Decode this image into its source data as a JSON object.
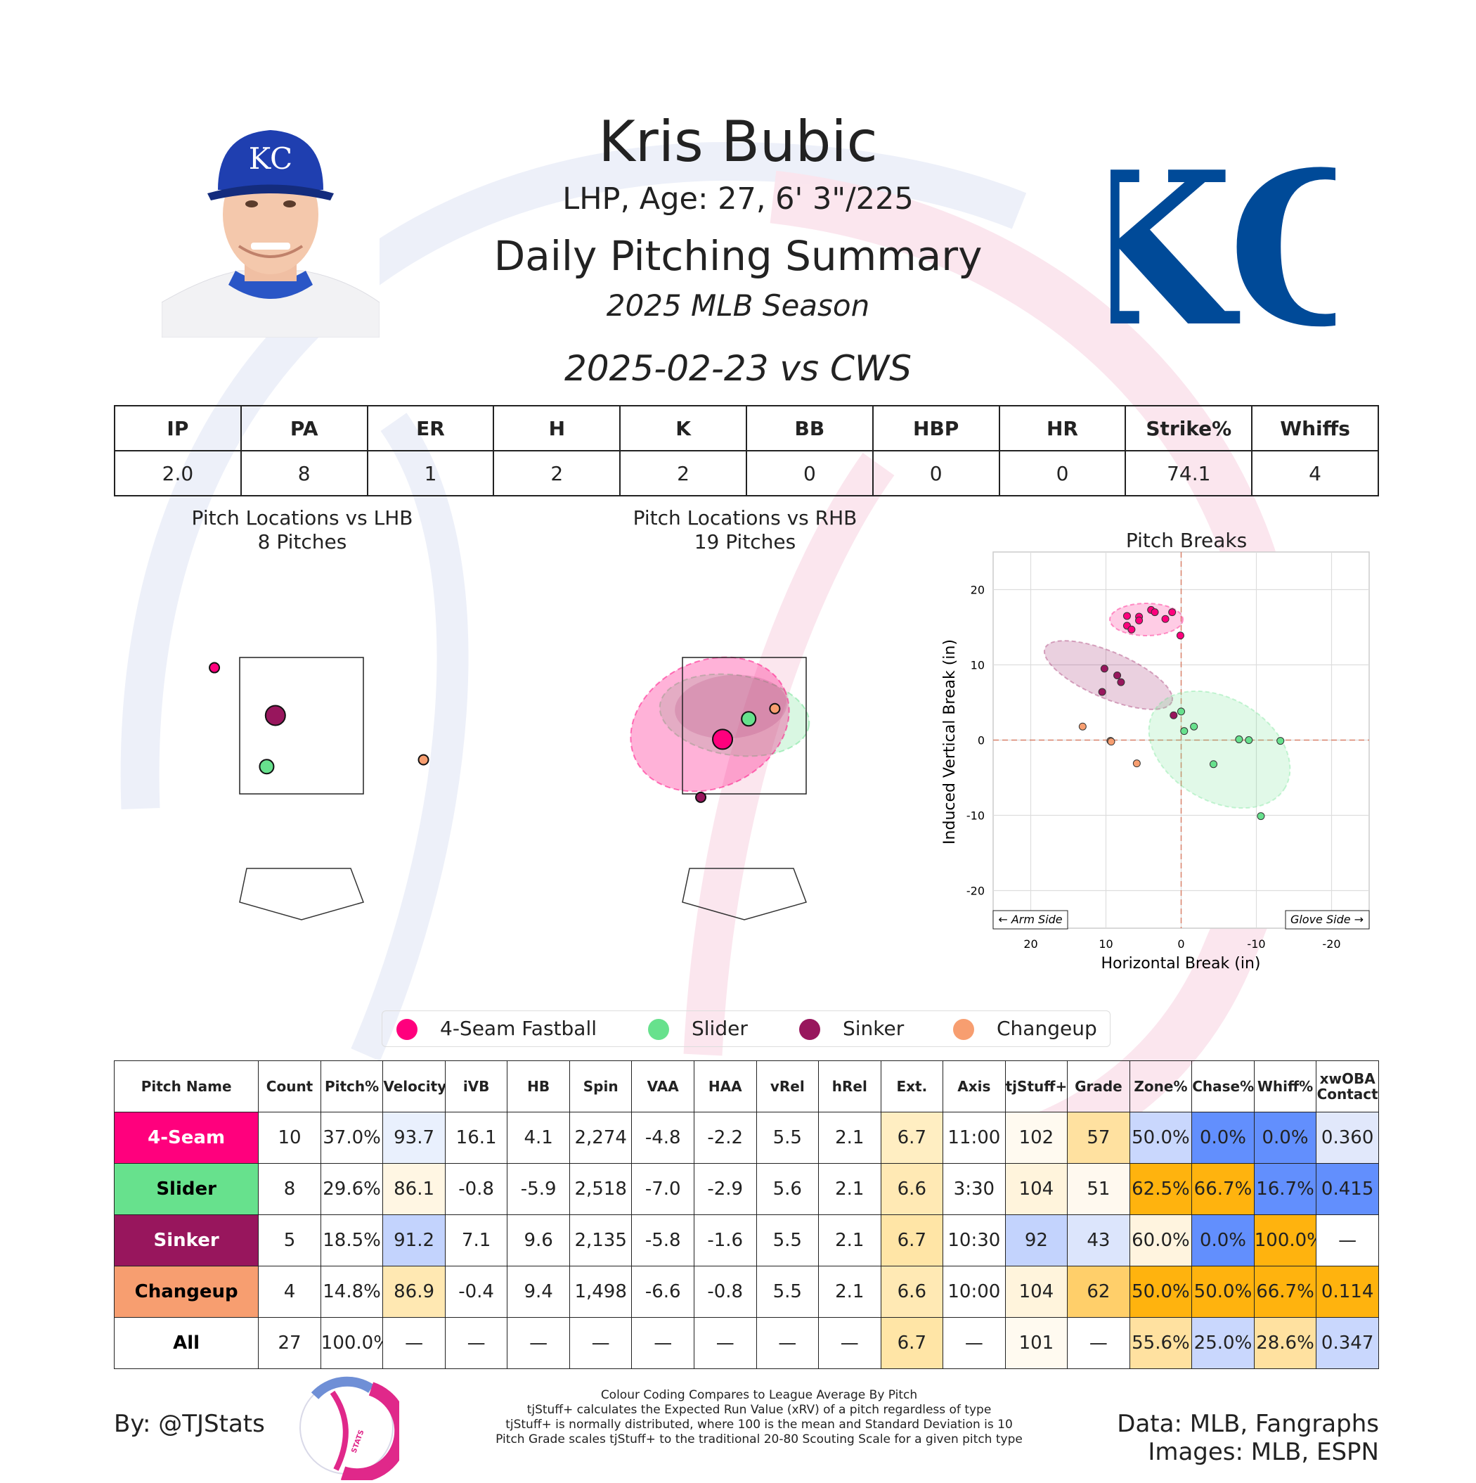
{
  "header": {
    "name": "Kris Bubic",
    "bio": "LHP, Age: 27, 6' 3\"/225",
    "report": "Daily Pitching Summary",
    "season": "2025 MLB Season",
    "game": "2025-02-23 vs CWS",
    "team_logo_text": "KC",
    "cap_logo_text": "KC"
  },
  "summary": {
    "headers": [
      "IP",
      "PA",
      "ER",
      "H",
      "K",
      "BB",
      "HBP",
      "HR",
      "Strike%",
      "Whiffs"
    ],
    "values": [
      "2.0",
      "8",
      "1",
      "2",
      "2",
      "0",
      "0",
      "0",
      "74.1",
      "4"
    ]
  },
  "colors": {
    "4-Seam Fastball": "#ff007d",
    "Slider": "#67e18d",
    "Sinker": "#98165d",
    "Changeup": "#f79e70"
  },
  "legend": [
    "4-Seam Fastball",
    "Slider",
    "Sinker",
    "Changeup"
  ],
  "chart_data": [
    {
      "type": "scatter",
      "title": "Pitch Locations vs LHB",
      "subtitle": "8 Pitches",
      "points": [
        {
          "pitch": "4-Seam Fastball",
          "x": -1.0,
          "y": 3.35,
          "size": "small"
        },
        {
          "pitch": "Sinker",
          "x": -0.3,
          "y": 2.65,
          "size": "large"
        },
        {
          "pitch": "Slider",
          "x": -0.4,
          "y": 1.9,
          "size": "medium"
        },
        {
          "pitch": "Changeup",
          "x": 1.4,
          "y": 2.0,
          "size": "small"
        }
      ]
    },
    {
      "type": "scatter",
      "title": "Pitch Locations vs RHB",
      "subtitle": "19 Pitches",
      "points": [
        {
          "pitch": "4-Seam Fastball",
          "x": -0.25,
          "y": 2.3,
          "size": "large"
        },
        {
          "pitch": "Slider",
          "x": 0.05,
          "y": 2.6,
          "size": "medium"
        },
        {
          "pitch": "Changeup",
          "x": 0.35,
          "y": 2.75,
          "size": "small"
        },
        {
          "pitch": "Sinker",
          "x": -0.5,
          "y": 1.45,
          "size": "small"
        }
      ]
    },
    {
      "type": "scatter",
      "title": "Pitch Breaks",
      "xlabel": "Horizontal Break (in)",
      "ylabel": "Induced Vertical Break (in)",
      "xlim": [
        25,
        -25
      ],
      "ylim": [
        -25,
        25
      ],
      "xticks": [
        20,
        10,
        0,
        -10,
        -20
      ],
      "yticks": [
        20,
        10,
        0,
        -10,
        -20
      ],
      "arm_side_label": "← Arm Side",
      "glove_side_label": "Glove Side →",
      "series": [
        {
          "name": "4-Seam Fastball",
          "points": [
            [
              7.2,
              16.5
            ],
            [
              5.6,
              16.4
            ],
            [
              5.6,
              15.9
            ],
            [
              4.0,
              17.3
            ],
            [
              3.5,
              17.0
            ],
            [
              2.1,
              16.1
            ],
            [
              1.2,
              17.0
            ],
            [
              7.2,
              15.2
            ],
            [
              6.6,
              14.7
            ],
            [
              0.1,
              13.9
            ]
          ]
        },
        {
          "name": "Sinker",
          "points": [
            [
              10.2,
              9.5
            ],
            [
              8.5,
              8.6
            ],
            [
              8.0,
              7.7
            ],
            [
              10.5,
              6.4
            ],
            [
              1.0,
              3.3
            ]
          ]
        },
        {
          "name": "Slider",
          "points": [
            [
              0.0,
              3.8
            ],
            [
              -0.4,
              1.2
            ],
            [
              -1.7,
              1.8
            ],
            [
              -7.7,
              0.1
            ],
            [
              -9.0,
              0.0
            ],
            [
              -13.2,
              -0.1
            ],
            [
              -4.3,
              -3.2
            ],
            [
              -10.6,
              -10.1
            ]
          ]
        },
        {
          "name": "Changeup",
          "points": [
            [
              13.1,
              1.8
            ],
            [
              9.4,
              -0.1
            ],
            [
              5.9,
              -3.1
            ],
            [
              9.3,
              -0.2
            ]
          ]
        }
      ]
    }
  ],
  "pitch_table": {
    "headers": [
      "Pitch Name",
      "Count",
      "Pitch%",
      "Velocity",
      "iVB",
      "HB",
      "Spin",
      "VAA",
      "HAA",
      "vRel",
      "hRel",
      "Ext.",
      "Axis",
      "tjStuff+",
      "Grade",
      "Zone%",
      "Chase%",
      "Whiff%",
      "xwOBA Contact"
    ],
    "rows": [
      {
        "name": "4-Seam",
        "color": "#ff007d",
        "text_color": "#ffffff",
        "cells": [
          "10",
          "37.0%",
          "93.7",
          "16.1",
          "4.1",
          "2,274",
          "-4.8",
          "-2.2",
          "5.5",
          "2.1",
          "6.7",
          "11:00",
          "102",
          "57",
          "50.0%",
          "0.0%",
          "0.0%",
          "0.360"
        ]
      },
      {
        "name": "Slider",
        "color": "#67e18d",
        "text_color": "#000000",
        "cells": [
          "8",
          "29.6%",
          "86.1",
          "-0.8",
          "-5.9",
          "2,518",
          "-7.0",
          "-2.9",
          "5.6",
          "2.1",
          "6.6",
          "3:30",
          "104",
          "51",
          "62.5%",
          "66.7%",
          "16.7%",
          "0.415"
        ]
      },
      {
        "name": "Sinker",
        "color": "#98165d",
        "text_color": "#ffffff",
        "cells": [
          "5",
          "18.5%",
          "91.2",
          "7.1",
          "9.6",
          "2,135",
          "-5.8",
          "-1.6",
          "5.5",
          "2.1",
          "6.7",
          "10:30",
          "92",
          "43",
          "60.0%",
          "0.0%",
          "100.0%",
          "—"
        ]
      },
      {
        "name": "Changeup",
        "color": "#f79e70",
        "text_color": "#000000",
        "cells": [
          "4",
          "14.8%",
          "86.9",
          "-0.4",
          "9.4",
          "1,498",
          "-6.6",
          "-0.8",
          "5.5",
          "2.1",
          "6.6",
          "10:00",
          "104",
          "62",
          "50.0%",
          "50.0%",
          "66.7%",
          "0.114"
        ]
      },
      {
        "name": "All",
        "color": "#ffffff",
        "text_color": "#000000",
        "cells": [
          "27",
          "100.0%",
          "—",
          "—",
          "—",
          "—",
          "—",
          "—",
          "—",
          "—",
          "6.7",
          "—",
          "101",
          "—",
          "55.6%",
          "25.0%",
          "28.6%",
          "0.347"
        ]
      }
    ],
    "cell_colors": [
      [
        "#fff",
        "#fff",
        "#e9f0fd",
        "#fff",
        "#fff",
        "#fff",
        "#fff",
        "#fff",
        "#fff",
        "#fff",
        "#ffeec2",
        "#fff",
        "#fffaf0",
        "#ffe1a0",
        "#c9d7fd",
        "#628ffd",
        "#628ffd",
        "#e1e8fb"
      ],
      [
        "#fff",
        "#fff",
        "#fff6e3",
        "#fff",
        "#fff",
        "#fff",
        "#fff",
        "#fff",
        "#fff",
        "#fff",
        "#ffe9b4",
        "#fff",
        "#fff4dc",
        "#fff9ef",
        "#ffb30e",
        "#ffb30e",
        "#628ffd",
        "#628ffd"
      ],
      [
        "#fff",
        "#fff",
        "#c3d3fd",
        "#fff",
        "#fff",
        "#fff",
        "#fff",
        "#fff",
        "#fff",
        "#fff",
        "#ffe5a6",
        "#fff",
        "#c3d3fd",
        "#dce5fc",
        "#fff4df",
        "#628ffd",
        "#ffb30e",
        "#fff"
      ],
      [
        "#fff",
        "#fff",
        "#ffe8b2",
        "#fff",
        "#fff",
        "#fff",
        "#fff",
        "#fff",
        "#fff",
        "#fff",
        "#ffe9b4",
        "#fff",
        "#fff4dc",
        "#ffcf6a",
        "#ffb30e",
        "#ffb30e",
        "#ffb30e",
        "#ffb30e"
      ],
      [
        "#fff",
        "#fff",
        "#fff",
        "#fff",
        "#fff",
        "#fff",
        "#fff",
        "#fff",
        "#fff",
        "#fff",
        "#ffe5a6",
        "#fff",
        "#fffaf0",
        "#fff",
        "#ffe1a0",
        "#c9d7fd",
        "#ffe1a0",
        "#c9d7fd"
      ]
    ]
  },
  "footer": {
    "byline": "By: @TJStats",
    "logo_text": "STATS",
    "notes": [
      "Colour Coding Compares to League Average By Pitch",
      "tjStuff+ calculates the Expected Run Value (xRV) of a pitch regardless of type",
      "tjStuff+ is normally distributed, where 100 is the mean and Standard Deviation is 10",
      "Pitch Grade scales tjStuff+ to the traditional 20-80 Scouting Scale for a given pitch type"
    ],
    "data_credit": "Data: MLB, Fangraphs",
    "image_credit": "Images: MLB, ESPN"
  }
}
